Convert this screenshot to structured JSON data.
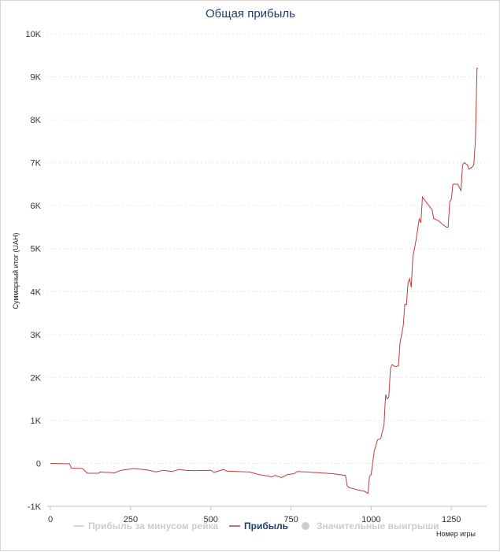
{
  "chart_data": {
    "type": "line",
    "title": "Общая прибыль",
    "xlabel": "Номер игры",
    "ylabel": "Суммарный итог (UAH)",
    "xlim": [
      -10,
      1360
    ],
    "ylim": [
      -1000,
      10000
    ],
    "x_ticks": [
      {
        "value": 0,
        "label": "0"
      },
      {
        "value": 250,
        "label": "250"
      },
      {
        "value": 500,
        "label": "500"
      },
      {
        "value": 750,
        "label": "750"
      },
      {
        "value": 1000,
        "label": "1000"
      },
      {
        "value": 1250,
        "label": "1250"
      }
    ],
    "y_ticks": [
      {
        "value": -1000,
        "label": "-1K"
      },
      {
        "value": 0,
        "label": "0"
      },
      {
        "value": 1000,
        "label": "1K"
      },
      {
        "value": 2000,
        "label": "2K"
      },
      {
        "value": 3000,
        "label": "3K"
      },
      {
        "value": 4000,
        "label": "4K"
      },
      {
        "value": 5000,
        "label": "5K"
      },
      {
        "value": 6000,
        "label": "6K"
      },
      {
        "value": 7000,
        "label": "7K"
      },
      {
        "value": 8000,
        "label": "8K"
      },
      {
        "value": 9000,
        "label": "9K"
      },
      {
        "value": 10000,
        "label": "10K"
      }
    ],
    "grid": true,
    "legend": "bottom",
    "series": [
      {
        "name": "Прибыль",
        "color": "#c23b3b",
        "visible": true,
        "points": [
          [
            0,
            0
          ],
          [
            60,
            -10
          ],
          [
            65,
            -110
          ],
          [
            100,
            -120
          ],
          [
            115,
            -230
          ],
          [
            150,
            -230
          ],
          [
            155,
            -200
          ],
          [
            200,
            -220
          ],
          [
            220,
            -160
          ],
          [
            260,
            -120
          ],
          [
            300,
            -150
          ],
          [
            330,
            -200
          ],
          [
            350,
            -160
          ],
          [
            380,
            -190
          ],
          [
            400,
            -140
          ],
          [
            420,
            -160
          ],
          [
            450,
            -170
          ],
          [
            500,
            -160
          ],
          [
            510,
            -210
          ],
          [
            540,
            -140
          ],
          [
            550,
            -180
          ],
          [
            580,
            -190
          ],
          [
            620,
            -200
          ],
          [
            650,
            -260
          ],
          [
            680,
            -300
          ],
          [
            690,
            -320
          ],
          [
            700,
            -280
          ],
          [
            720,
            -330
          ],
          [
            740,
            -260
          ],
          [
            760,
            -240
          ],
          [
            770,
            -190
          ],
          [
            800,
            -200
          ],
          [
            840,
            -220
          ],
          [
            880,
            -240
          ],
          [
            920,
            -280
          ],
          [
            925,
            -520
          ],
          [
            930,
            -560
          ],
          [
            960,
            -620
          ],
          [
            980,
            -650
          ],
          [
            990,
            -700
          ],
          [
            995,
            -300
          ],
          [
            1000,
            -260
          ],
          [
            1010,
            300
          ],
          [
            1020,
            550
          ],
          [
            1030,
            580
          ],
          [
            1040,
            900
          ],
          [
            1045,
            1600
          ],
          [
            1050,
            1500
          ],
          [
            1055,
            1550
          ],
          [
            1060,
            2200
          ],
          [
            1065,
            2300
          ],
          [
            1075,
            2250
          ],
          [
            1085,
            2270
          ],
          [
            1090,
            2800
          ],
          [
            1100,
            3200
          ],
          [
            1105,
            3700
          ],
          [
            1110,
            3700
          ],
          [
            1115,
            4200
          ],
          [
            1120,
            4300
          ],
          [
            1125,
            4100
          ],
          [
            1130,
            4800
          ],
          [
            1140,
            5200
          ],
          [
            1150,
            5700
          ],
          [
            1155,
            5600
          ],
          [
            1160,
            6200
          ],
          [
            1170,
            6100
          ],
          [
            1180,
            6000
          ],
          [
            1190,
            5900
          ],
          [
            1195,
            5700
          ],
          [
            1210,
            5650
          ],
          [
            1225,
            5550
          ],
          [
            1235,
            5500
          ],
          [
            1240,
            5500
          ],
          [
            1245,
            6100
          ],
          [
            1250,
            6150
          ],
          [
            1255,
            6500
          ],
          [
            1270,
            6500
          ],
          [
            1280,
            6350
          ],
          [
            1285,
            6950
          ],
          [
            1290,
            7000
          ],
          [
            1300,
            6950
          ],
          [
            1305,
            6850
          ],
          [
            1315,
            6900
          ],
          [
            1320,
            6950
          ],
          [
            1325,
            7500
          ],
          [
            1330,
            9200
          ],
          [
            1333,
            9200
          ]
        ]
      },
      {
        "name": "Прибыль за минусом рейка",
        "color": "#cccccc",
        "visible": false,
        "points": []
      },
      {
        "name": "Значительные выигрыши",
        "color": "#cccccc",
        "visible": false,
        "points": []
      }
    ]
  },
  "legend_items": [
    {
      "label": "Прибыль за минусом рейка",
      "color": "#cccccc",
      "active": false,
      "symbol": "line"
    },
    {
      "label": "Прибыль",
      "color": "#c23b3b",
      "active": true,
      "symbol": "line"
    },
    {
      "label": "Значительные выигрыши",
      "color": "#cccccc",
      "active": false,
      "symbol": "dot"
    }
  ]
}
